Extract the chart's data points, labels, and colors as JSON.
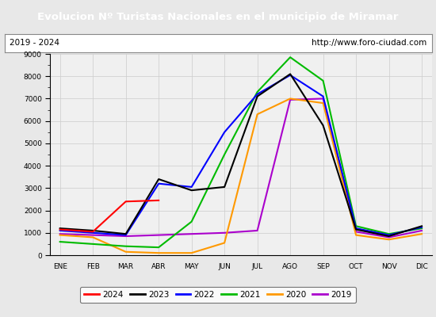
{
  "title": "Evolucion Nº Turistas Nacionales en el municipio de Miramar",
  "subtitle_left": "2019 - 2024",
  "subtitle_right": "http://www.foro-ciudad.com",
  "title_bg_color": "#4472c4",
  "title_text_color": "#ffffff",
  "months": [
    "ENE",
    "FEB",
    "MAR",
    "ABR",
    "MAY",
    "JUN",
    "JUL",
    "AGO",
    "SEP",
    "OCT",
    "NOV",
    "DIC"
  ],
  "ylim": [
    0,
    9000
  ],
  "yticks": [
    0,
    1000,
    2000,
    3000,
    4000,
    5000,
    6000,
    7000,
    8000,
    9000
  ],
  "series": {
    "2024": {
      "color": "#ff0000",
      "linewidth": 1.5,
      "data": [
        1150,
        1050,
        2400,
        2450,
        null,
        null,
        null,
        null,
        null,
        null,
        null,
        null
      ]
    },
    "2023": {
      "color": "#000000",
      "linewidth": 1.5,
      "data": [
        1200,
        1100,
        950,
        3400,
        2900,
        3050,
        7100,
        8100,
        5800,
        1150,
        850,
        1300
      ]
    },
    "2022": {
      "color": "#0000ff",
      "linewidth": 1.5,
      "data": [
        1100,
        1000,
        900,
        3200,
        3050,
        5500,
        7200,
        8050,
        7100,
        1200,
        900,
        1250
      ]
    },
    "2021": {
      "color": "#00bb00",
      "linewidth": 1.5,
      "data": [
        600,
        500,
        400,
        350,
        1500,
        4500,
        7300,
        8850,
        7800,
        1300,
        950,
        1200
      ]
    },
    "2020": {
      "color": "#ff9900",
      "linewidth": 1.5,
      "data": [
        900,
        800,
        150,
        100,
        100,
        550,
        6300,
        7000,
        6800,
        900,
        700,
        950
      ]
    },
    "2019": {
      "color": "#aa00cc",
      "linewidth": 1.5,
      "data": [
        950,
        900,
        850,
        900,
        950,
        1000,
        1100,
        6950,
        7000,
        1050,
        800,
        1100
      ]
    }
  },
  "legend_order": [
    "2024",
    "2023",
    "2022",
    "2021",
    "2020",
    "2019"
  ],
  "bg_color": "#e8e8e8",
  "plot_bg_color": "#f0f0f0",
  "grid_color": "#cccccc",
  "subtitle_bg": "#ffffff",
  "fig_width": 5.5,
  "fig_height": 4.0,
  "fig_dpi": 100
}
